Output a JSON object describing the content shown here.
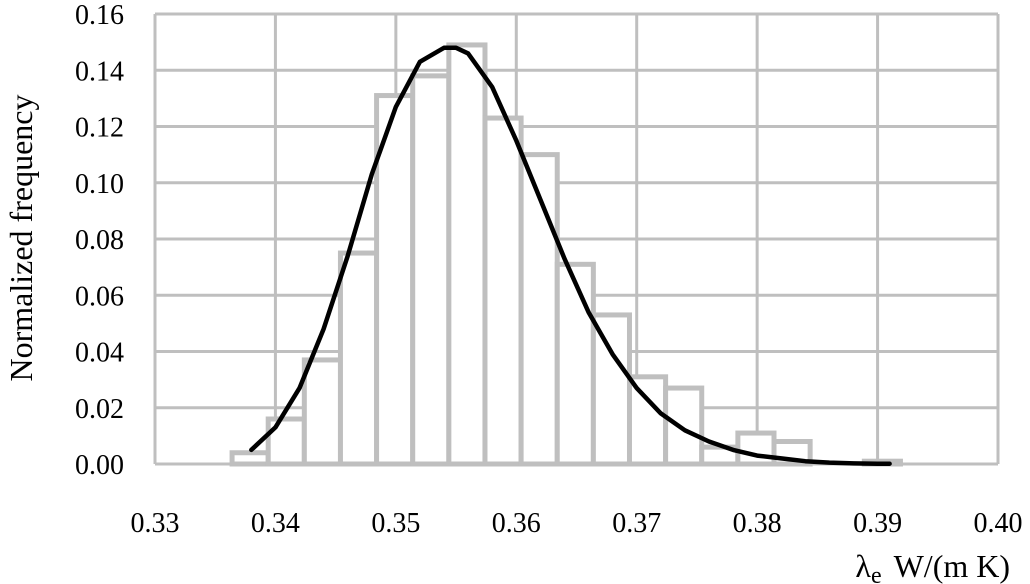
{
  "chart_data": {
    "type": "bar",
    "xlabel": "λe W/(m K)",
    "xlabel_parts": {
      "symbol": "λ",
      "subscript": "e",
      "unit": "W/(m K)"
    },
    "ylabel": "Normalized frequency",
    "xlim": [
      0.33,
      0.4
    ],
    "ylim": [
      0,
      0.16
    ],
    "x_ticks": [
      "0.33",
      "0.34",
      "0.35",
      "0.36",
      "0.37",
      "0.38",
      "0.39",
      "0.40"
    ],
    "y_ticks": [
      "0.00",
      "0.02",
      "0.04",
      "0.06",
      "0.08",
      "0.10",
      "0.12",
      "0.14",
      "0.16"
    ],
    "grid": true,
    "bin_width": 0.003,
    "bars": [
      {
        "x": 0.3379,
        "value": 0.004
      },
      {
        "x": 0.3409,
        "value": 0.016
      },
      {
        "x": 0.3439,
        "value": 0.037
      },
      {
        "x": 0.3469,
        "value": 0.075
      },
      {
        "x": 0.3499,
        "value": 0.131
      },
      {
        "x": 0.3529,
        "value": 0.138
      },
      {
        "x": 0.3559,
        "value": 0.149
      },
      {
        "x": 0.3589,
        "value": 0.123
      },
      {
        "x": 0.3619,
        "value": 0.11
      },
      {
        "x": 0.3649,
        "value": 0.071
      },
      {
        "x": 0.3679,
        "value": 0.053
      },
      {
        "x": 0.3709,
        "value": 0.031
      },
      {
        "x": 0.3739,
        "value": 0.027
      },
      {
        "x": 0.3769,
        "value": 0.006
      },
      {
        "x": 0.3799,
        "value": 0.011
      },
      {
        "x": 0.3829,
        "value": 0.008
      },
      {
        "x": 0.3859,
        "value": 0.0
      },
      {
        "x": 0.3889,
        "value": 0.0
      },
      {
        "x": 0.3904,
        "value": 0.001
      }
    ],
    "fit_curve": {
      "x": [
        0.338,
        0.34,
        0.342,
        0.344,
        0.346,
        0.348,
        0.35,
        0.352,
        0.354,
        0.355,
        0.356,
        0.358,
        0.36,
        0.362,
        0.364,
        0.366,
        0.368,
        0.37,
        0.372,
        0.374,
        0.376,
        0.378,
        0.38,
        0.382,
        0.384,
        0.386,
        0.388,
        0.39,
        0.391
      ],
      "y": [
        0.005,
        0.013,
        0.027,
        0.048,
        0.074,
        0.103,
        0.127,
        0.143,
        0.148,
        0.148,
        0.146,
        0.134,
        0.115,
        0.094,
        0.073,
        0.054,
        0.039,
        0.027,
        0.018,
        0.012,
        0.008,
        0.005,
        0.003,
        0.002,
        0.001,
        0.0005,
        0.0002,
        0.0001,
        0.0001
      ]
    },
    "colors": {
      "bars": "#bfbfbf",
      "grid": "#bfbfbf",
      "curve": "#000000"
    }
  }
}
